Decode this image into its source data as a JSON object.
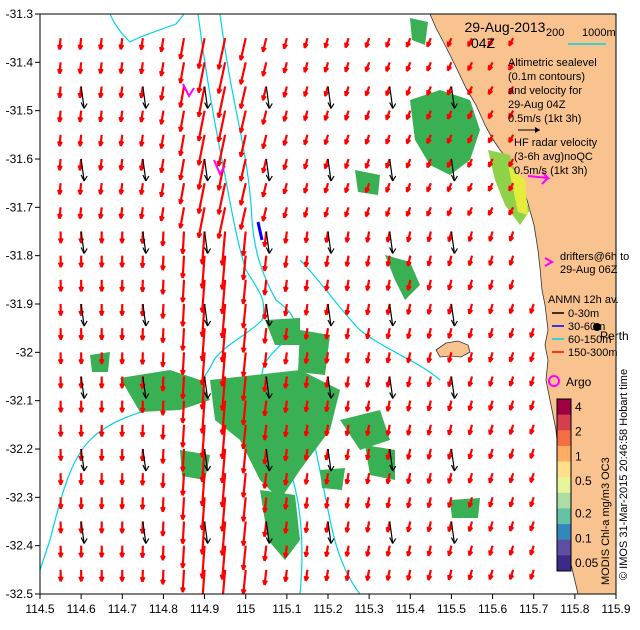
{
  "map": {
    "title_date": "29-Aug-2013",
    "title_time": "04Z",
    "depth_legend": [
      "200",
      "1000m"
    ],
    "lon_ticks": [
      "114.5",
      "114.6",
      "114.7",
      "114.8",
      "114.9",
      "115",
      "115.1",
      "115.2",
      "115.3",
      "115.4",
      "115.5",
      "115.6",
      "115.7",
      "115.8",
      "115.9"
    ],
    "lat_ticks": [
      "-31.3",
      "-31.4",
      "-31.5",
      "-31.6",
      "-31.7",
      "-31.8",
      "-31.9",
      "-32",
      "-32.1",
      "-32.2",
      "-32.3",
      "-32.4",
      "-32.5"
    ],
    "lon_range": [
      114.5,
      115.9
    ],
    "lat_range": [
      -32.5,
      -31.3
    ],
    "legend": {
      "altimetric": [
        "Altimetric sealevel",
        "(0.1m contours)",
        "and velocity for",
        "29-Aug 04Z",
        "0.5m/s (1kt 3h)"
      ],
      "hf_radar": [
        "HF radar velocity",
        "(3-6h avg)noQC",
        "0.5m/s (1kt 3h)"
      ],
      "drifters": [
        "drifters@6h to",
        "29-Aug 06Z"
      ],
      "anmn": [
        "ANMN 12h av.",
        "0-30m",
        "30-60m",
        "60-150m",
        "150-300m"
      ],
      "argo": "Argo",
      "place": "Perth"
    },
    "colorbar": {
      "ticks": [
        "4",
        "2",
        "1",
        "0.5",
        "0.2",
        "0.1",
        "0.05"
      ],
      "title": "MODIS Chl-a mg/m3 OC3"
    },
    "credit": "© IMOS 31-Mar-2015 20:46:58 Hobart time",
    "colors": {
      "land": "#f9c390",
      "arrow_red": "#ff0000",
      "arrow_black": "#000000",
      "contour": "#00d4e6",
      "drifter": "#ff00ff",
      "chl_green": "#3ab054"
    }
  }
}
